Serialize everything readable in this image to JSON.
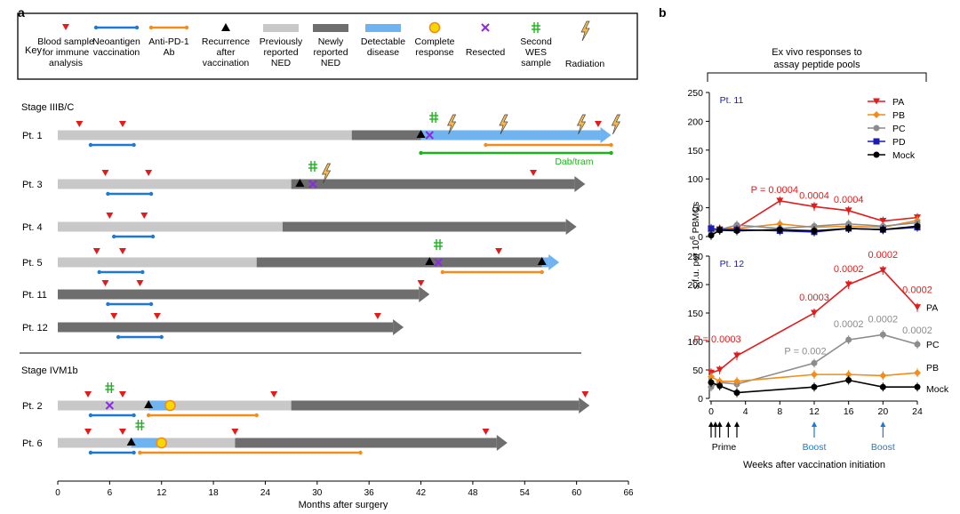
{
  "panel_a": {
    "label": "a",
    "key_title": "Key",
    "key_items": [
      {
        "id": "blood",
        "icon": "red-triangle",
        "lines": [
          "Blood sample",
          "for immune",
          "analysis"
        ]
      },
      {
        "id": "vacc",
        "icon": "blue-line",
        "lines": [
          "Neoantigen",
          "vaccination"
        ]
      },
      {
        "id": "pd1",
        "icon": "orange-line",
        "lines": [
          "Anti-PD-1",
          "Ab"
        ]
      },
      {
        "id": "recur",
        "icon": "black-triangle",
        "lines": [
          "Recurrence",
          "after",
          "vaccination"
        ]
      },
      {
        "id": "prev",
        "icon": "light-gray-bar",
        "lines": [
          "Previously",
          "reported",
          "NED"
        ]
      },
      {
        "id": "newly",
        "icon": "dark-gray-bar",
        "lines": [
          "Newly",
          "reported",
          "NED"
        ]
      },
      {
        "id": "detect",
        "icon": "blue-bar",
        "lines": [
          "Detectable",
          "disease"
        ]
      },
      {
        "id": "complete",
        "icon": "yellow-circle",
        "lines": [
          "Complete",
          "response"
        ]
      },
      {
        "id": "resected",
        "icon": "purple-x",
        "lines": [
          "Resected"
        ]
      },
      {
        "id": "wes",
        "icon": "green-double-cross",
        "lines": [
          "Second",
          "WES",
          "sample"
        ]
      },
      {
        "id": "radiation",
        "icon": "lightning",
        "lines": [
          "Radiation"
        ]
      }
    ],
    "stage1_title": "Stage IIIB/C",
    "stage2_title": "Stage IVM1b",
    "patients": [
      {
        "name": "Pt. 1",
        "light": [
          0,
          34
        ],
        "dark": [
          34,
          42
        ],
        "blue": [
          42,
          64
        ],
        "tail": "blue",
        "end": 64,
        "blood": [
          2.5,
          7.5,
          62.5
        ],
        "vacc": [
          3.8,
          8.8
        ],
        "pd1": [
          49.5,
          64
        ],
        "green": [
          42,
          64
        ],
        "green_label": "Dab/tram",
        "recur": [
          42
        ],
        "resected": [
          43
        ],
        "wes": [
          43.5
        ],
        "radiation": [
          45.5,
          51.5,
          60.5,
          64.5
        ],
        "complete": []
      },
      {
        "name": "Pt. 3",
        "light": [
          0,
          27
        ],
        "dark": [
          27,
          61
        ],
        "tail": "dark",
        "end": 61,
        "blood": [
          5.5,
          10.5,
          55
        ],
        "vacc": [
          5.8,
          10.8
        ],
        "pd1": null,
        "green": null,
        "recur": [
          28
        ],
        "resected": [
          29.5
        ],
        "wes": [
          29.5
        ],
        "radiation": [
          31
        ],
        "complete": []
      },
      {
        "name": "Pt. 4",
        "light": [
          0,
          26
        ],
        "dark": [
          26,
          60
        ],
        "tail": "dark",
        "end": 60,
        "blood": [
          6,
          10
        ],
        "vacc": [
          6.5,
          11
        ],
        "pd1": null,
        "green": null,
        "recur": [],
        "resected": [],
        "wes": [],
        "radiation": [],
        "complete": []
      },
      {
        "name": "Pt. 5",
        "light": [
          0,
          23
        ],
        "dark": [
          23,
          56
        ],
        "blue": [
          56,
          58
        ],
        "tail": "blue",
        "end": 58,
        "blood": [
          4.5,
          7.5,
          51
        ],
        "vacc": [
          4.8,
          9.8
        ],
        "pd1": [
          44.5,
          56
        ],
        "green": null,
        "recur": [
          43,
          56
        ],
        "resected": [
          44
        ],
        "wes": [
          44
        ],
        "radiation": [],
        "complete": []
      },
      {
        "name": "Pt. 11",
        "light": null,
        "dark": [
          0,
          43
        ],
        "tail": "dark",
        "end": 43,
        "blood": [
          5.5,
          9.5,
          42
        ],
        "vacc": [
          5.8,
          10.8
        ],
        "pd1": null,
        "green": null,
        "recur": [],
        "resected": [],
        "wes": [],
        "radiation": [],
        "complete": []
      },
      {
        "name": "Pt. 12",
        "light": null,
        "dark": [
          0,
          40
        ],
        "tail": "dark",
        "end": 40,
        "blood": [
          6.5,
          11.5,
          37
        ],
        "vacc": [
          7,
          12
        ],
        "pd1": null,
        "green": null,
        "recur": [],
        "resected": [],
        "wes": [],
        "radiation": [],
        "complete": []
      },
      {
        "name": "Pt. 2",
        "light": [
          0,
          10.5
        ],
        "blue": [
          10.5,
          13
        ],
        "light2": [
          13,
          27
        ],
        "dark": [
          27,
          61.5
        ],
        "tail": "dark",
        "end": 61.5,
        "blood": [
          3.5,
          7.5,
          25,
          61
        ],
        "vacc": [
          3.8,
          8.8
        ],
        "pd1": [
          10.5,
          23
        ],
        "green": null,
        "recur": [
          10.5
        ],
        "resected": [
          6
        ],
        "wes": [
          6
        ],
        "radiation": [],
        "complete": [
          13
        ]
      },
      {
        "name": "Pt. 6",
        "light": [
          0,
          8.5
        ],
        "blue": [
          8.5,
          12
        ],
        "light2": [
          12,
          20.5
        ],
        "dark": [
          20.5,
          52
        ],
        "tail": "dark",
        "end": 52,
        "blood": [
          3.5,
          7.5,
          20.5,
          49.5
        ],
        "vacc": [
          3.8,
          8.8
        ],
        "pd1": [
          9.5,
          35
        ],
        "green": null,
        "recur": [
          8.5
        ],
        "resected": [],
        "wes": [
          9.5
        ],
        "radiation": [],
        "complete": [
          12
        ]
      }
    ],
    "x_ticks": [
      "0",
      "6",
      "12",
      "18",
      "24",
      "30",
      "36",
      "42",
      "48",
      "54",
      "60",
      "66"
    ],
    "x_label": "Months after surgery"
  },
  "panel_b": {
    "label": "b",
    "header_line1": "Ex vivo responses to",
    "header_line2": "assay peptide pools",
    "y_label": "s.f.u. per 10",
    "y_label_sup": "6",
    "y_label_suffix": " PBMCs",
    "y_ticks": [
      "0",
      "50",
      "100",
      "150",
      "200",
      "250"
    ],
    "x_ticks": [
      "0",
      "4",
      "8",
      "12",
      "16",
      "20",
      "24"
    ],
    "x_label": "Weeks after vaccination initiation",
    "prime_label": "Prime",
    "boost_label": "Boost",
    "legend": [
      {
        "name": "PA",
        "color": "#e31b1b",
        "marker": "triangle-down"
      },
      {
        "name": "PB",
        "color": "#f28c1a",
        "marker": "diamond"
      },
      {
        "name": "PC",
        "color": "#8c8c8c",
        "marker": "circle"
      },
      {
        "name": "PD",
        "color": "#1c1cb4",
        "marker": "square"
      },
      {
        "name": "Mock",
        "color": "#000000",
        "marker": "circle"
      }
    ],
    "chart_data": [
      {
        "type": "line",
        "title": "Pt. 11",
        "ylim": [
          0,
          250
        ],
        "xlim": [
          0,
          24
        ],
        "series": [
          {
            "name": "PA",
            "x": [
              0,
              1,
              3,
              8,
              12,
              16,
              20,
              24
            ],
            "values": [
              13,
              12,
              15,
              62,
              52,
              45,
              27,
              33
            ]
          },
          {
            "name": "PB",
            "x": [
              0,
              1,
              3,
              8,
              12,
              16,
              20,
              24
            ],
            "values": [
              10,
              14,
              14,
              22,
              16,
              18,
              16,
              28
            ]
          },
          {
            "name": "PC",
            "x": [
              0,
              1,
              3,
              8,
              12,
              16,
              20,
              24
            ],
            "values": [
              8,
              12,
              20,
              14,
              18,
              22,
              18,
              24
            ]
          },
          {
            "name": "PD",
            "x": [
              0,
              1,
              3,
              8,
              12,
              16,
              20,
              24
            ],
            "values": [
              14,
              12,
              12,
              10,
              8,
              14,
              12,
              16
            ]
          },
          {
            "name": "Mock",
            "x": [
              0,
              1,
              3,
              8,
              12,
              16,
              20,
              24
            ],
            "values": [
              2,
              11,
              10,
              12,
              10,
              14,
              12,
              18
            ]
          }
        ],
        "annotations": [
          {
            "text": "P = 0.0004",
            "x": 8,
            "y": 62,
            "color": "#e31b1b"
          },
          {
            "text": "0.0004",
            "x": 12,
            "y": 52,
            "color": "#e31b1b"
          },
          {
            "text": "0.0004",
            "x": 16,
            "y": 45,
            "color": "#e31b1b"
          }
        ]
      },
      {
        "type": "line",
        "title": "Pt. 12",
        "ylim": [
          0,
          250
        ],
        "xlim": [
          0,
          24
        ],
        "series": [
          {
            "name": "PA",
            "x": [
              0,
              1,
              3,
              12,
              16,
              20,
              24
            ],
            "values": [
              45,
              50,
              75,
              150,
              200,
              225,
              160
            ]
          },
          {
            "name": "PC",
            "x": [
              0,
              1,
              3,
              12,
              16,
              20,
              24
            ],
            "values": [
              20,
              28,
              25,
              62,
              103,
              112,
              95
            ]
          },
          {
            "name": "PB",
            "x": [
              0,
              1,
              3,
              12,
              16,
              20,
              24
            ],
            "values": [
              38,
              30,
              30,
              42,
              42,
              40,
              45
            ]
          },
          {
            "name": "Mock",
            "x": [
              0,
              1,
              3,
              12,
              16,
              20,
              24
            ],
            "values": [
              28,
              22,
              10,
              20,
              32,
              20,
              20
            ]
          }
        ],
        "annotations": [
          {
            "text": "P = 0.0003",
            "x": 3,
            "y": 75,
            "color": "#e31b1b"
          },
          {
            "text": "0.0003",
            "x": 12,
            "y": 150,
            "color": "#e31b1b"
          },
          {
            "text": "0.0002",
            "x": 16,
            "y": 200,
            "color": "#e31b1b"
          },
          {
            "text": "0.0002",
            "x": 20,
            "y": 225,
            "color": "#e31b1b"
          },
          {
            "text": "0.0002",
            "x": 24,
            "y": 160,
            "color": "#e31b1b"
          },
          {
            "text": "P = 0.002",
            "x": 12,
            "y": 62,
            "color": "#8c8c8c"
          },
          {
            "text": "0.0002",
            "x": 16,
            "y": 103,
            "color": "#8c8c8c"
          },
          {
            "text": "0.0002",
            "x": 20,
            "y": 112,
            "color": "#8c8c8c"
          },
          {
            "text": "0.0002",
            "x": 24,
            "y": 95,
            "color": "#8c8c8c"
          }
        ],
        "series_labels": [
          {
            "text": "PA"
          },
          {
            "text": "PC"
          },
          {
            "text": "PB"
          },
          {
            "text": "Mock"
          }
        ]
      }
    ]
  }
}
